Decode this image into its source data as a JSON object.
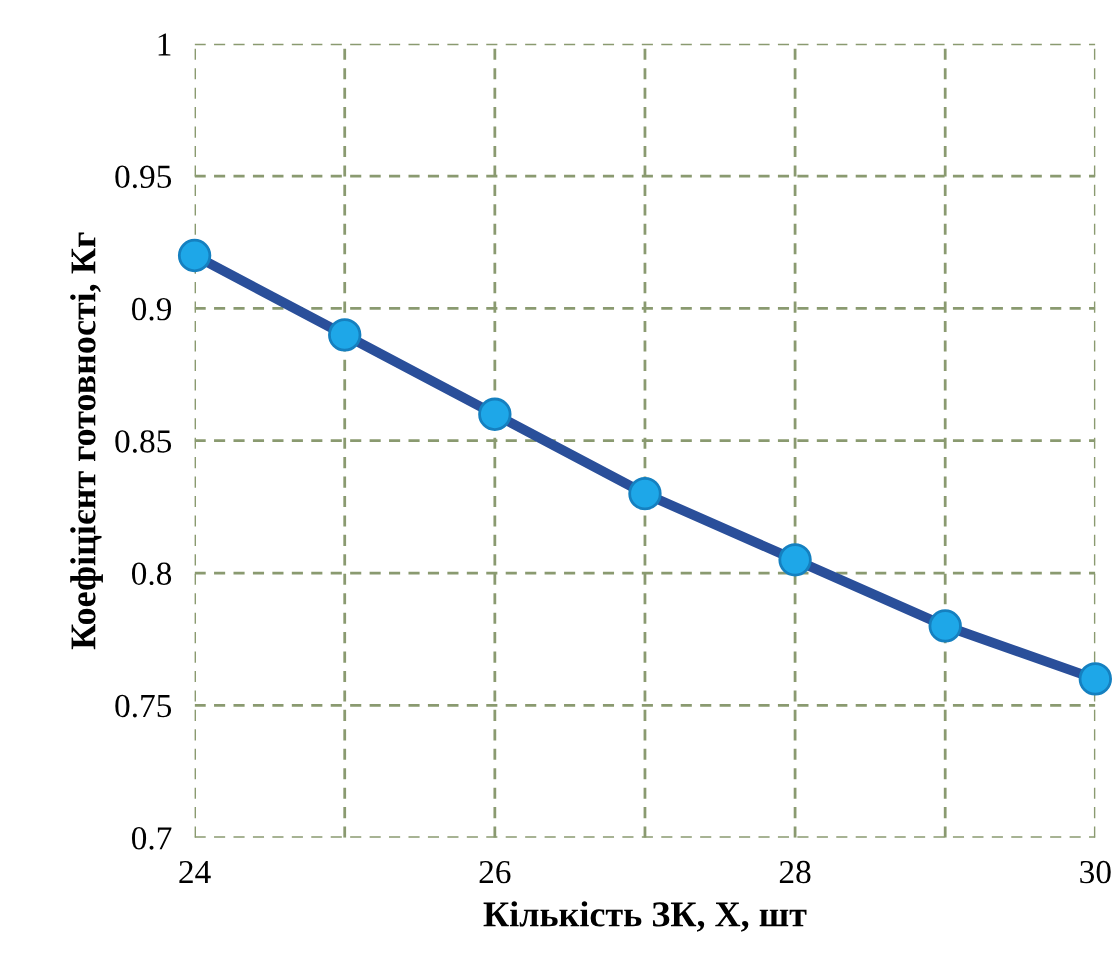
{
  "chart_data": {
    "type": "line",
    "xlabel": "Кількість ЗК, X, шт",
    "ylabel": "Коефіцієнт готовності, Кг",
    "x": [
      24,
      25,
      26,
      27,
      28,
      29,
      30
    ],
    "series": [
      {
        "color": "#2a4f9a",
        "values": [
          0.92,
          0.89,
          0.86,
          0.83,
          0.805,
          0.78,
          0.76
        ]
      }
    ],
    "marker": "circle",
    "line_style": "solid",
    "grid": true,
    "xlim": [
      24,
      30
    ],
    "xticks": [
      24,
      {
        "value": 25,
        "label": null
      },
      26,
      {
        "value": 27,
        "label": null
      },
      28,
      {
        "value": 29,
        "label": null
      },
      30
    ],
    "ylim": [
      0.7,
      1
    ],
    "yticks": [
      0.7,
      0.75,
      0.8,
      0.85,
      0.9,
      0.95,
      1
    ]
  }
}
